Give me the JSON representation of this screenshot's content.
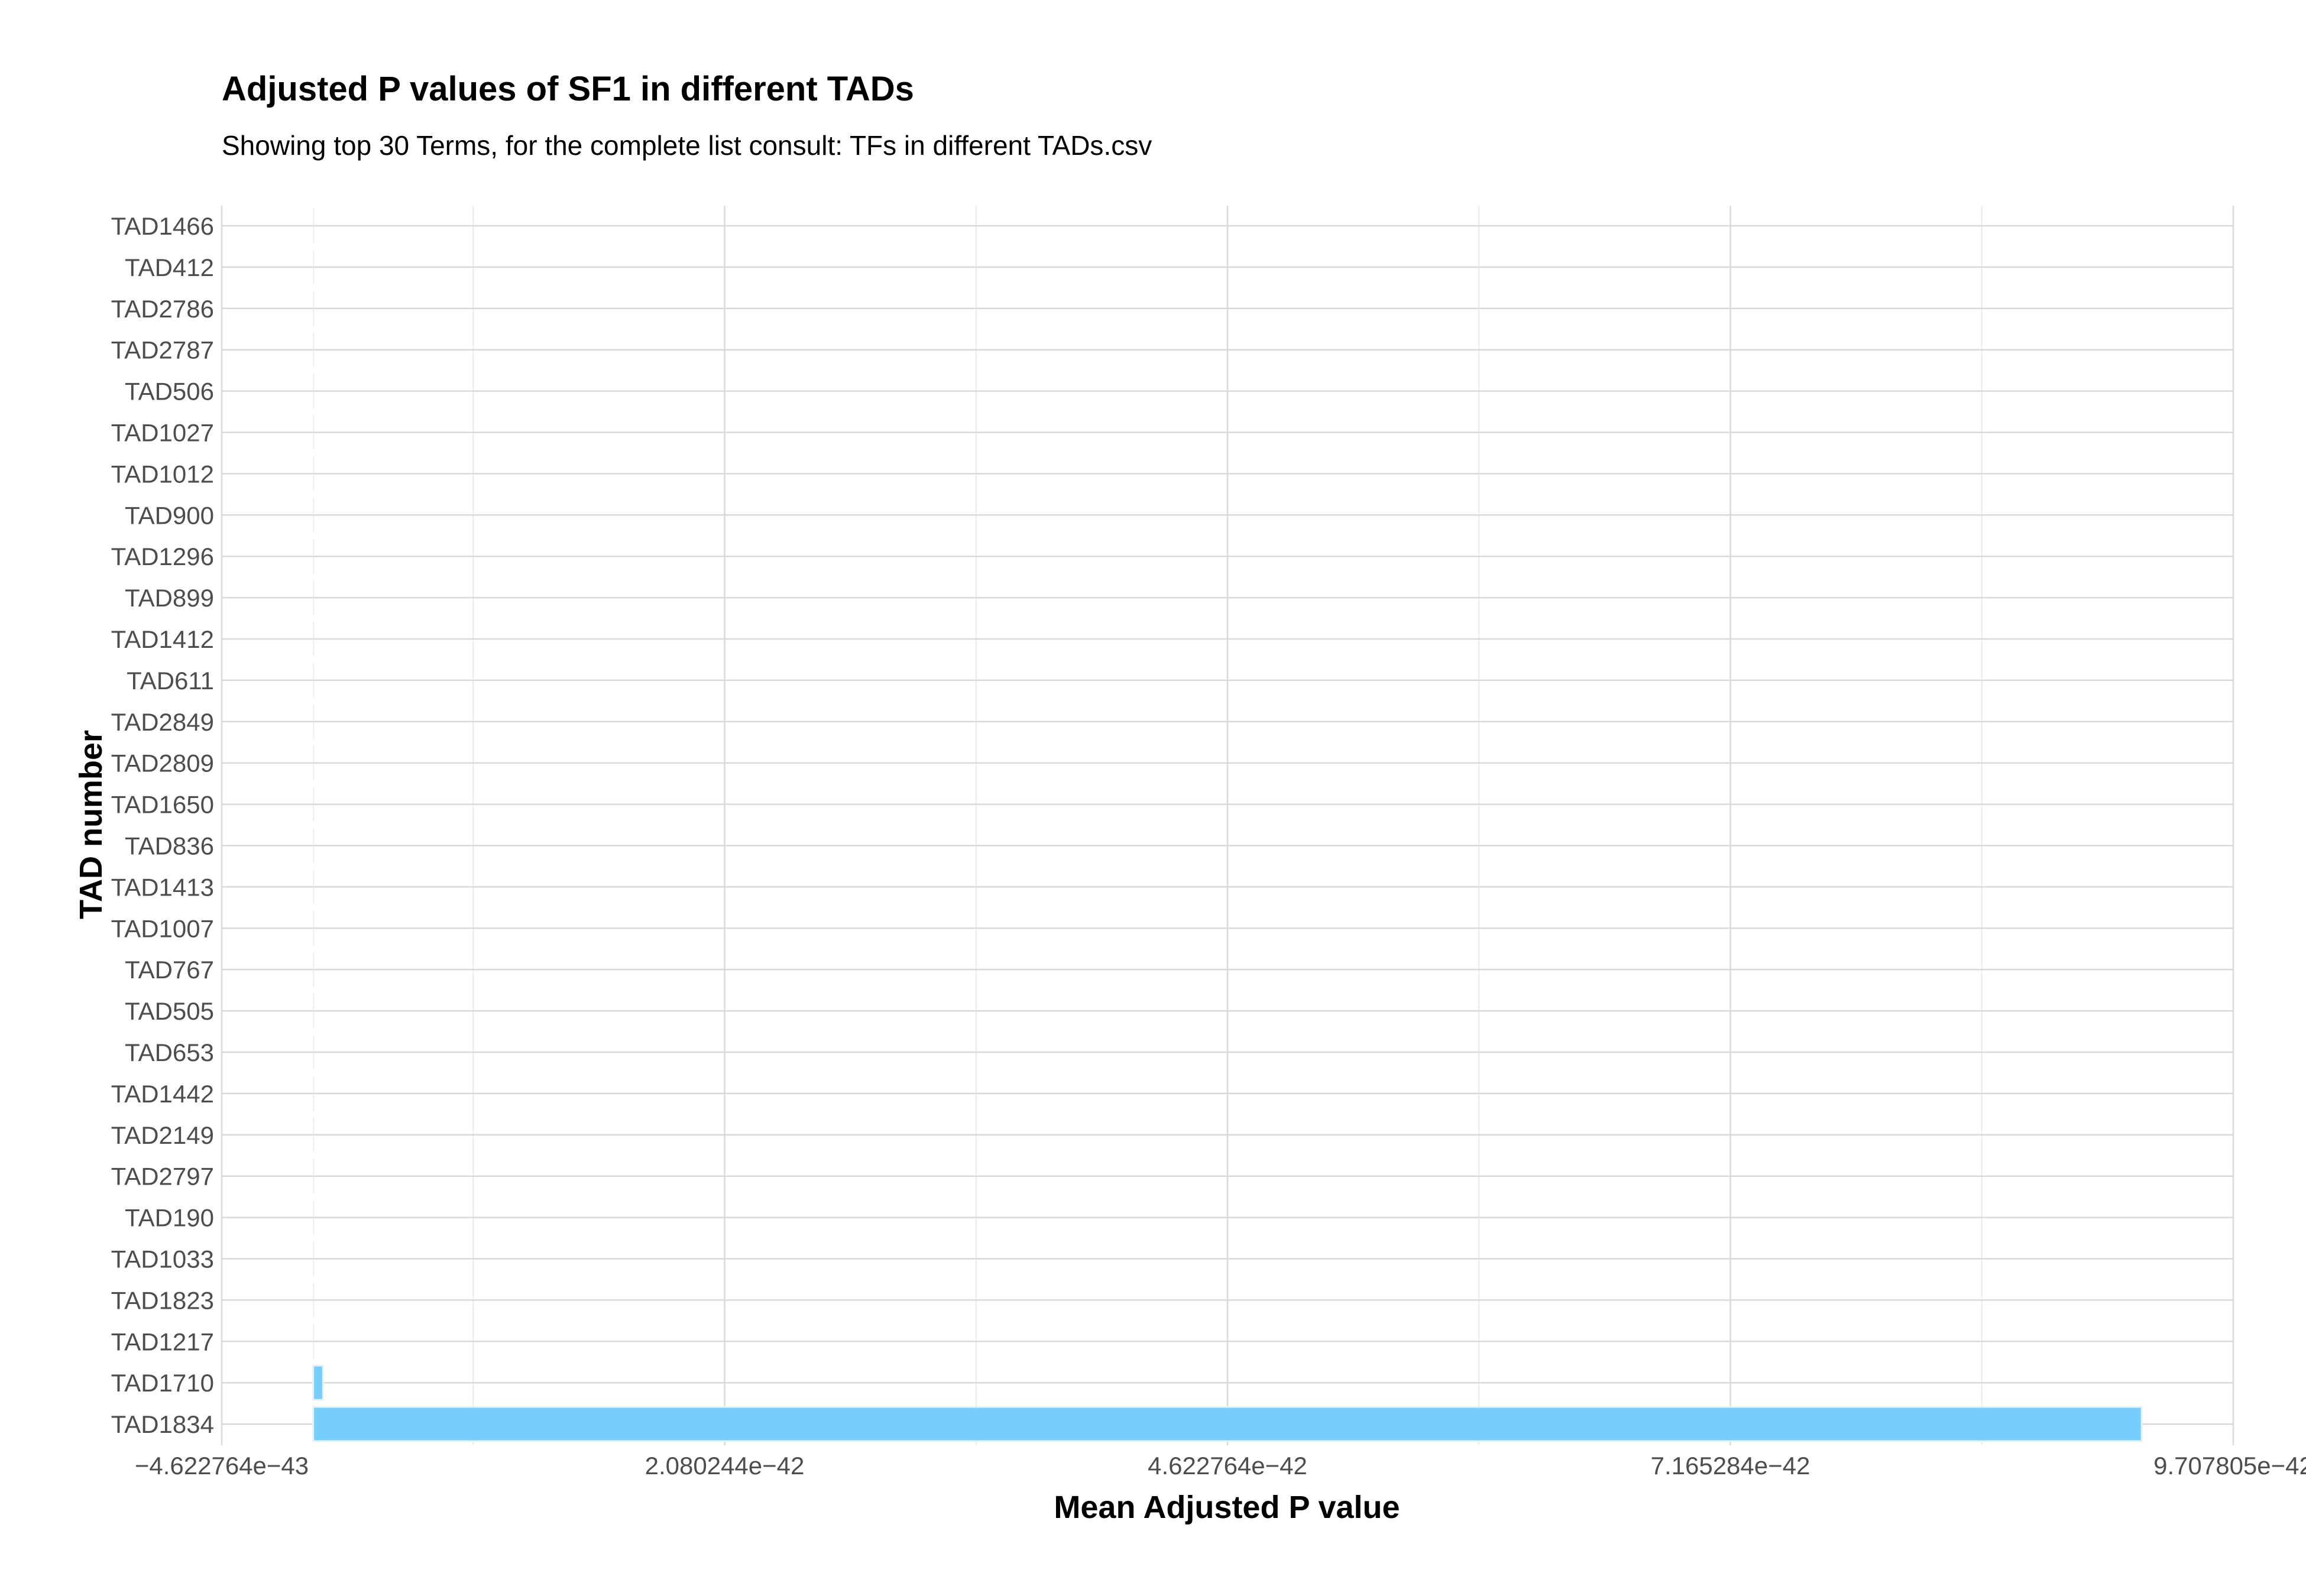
{
  "chart_data": {
    "type": "bar",
    "orientation": "horizontal",
    "title": "Adjusted P values of SF1 in different TADs",
    "subtitle": "Showing top 30 Terms, for the complete list consult: TFs in different TADs.csv",
    "xlabel": "Mean Adjusted P value",
    "ylabel": "TAD number",
    "xlim": [
      -4.622764e-43,
      9.707805e-42
    ],
    "x_ticks": [
      -4.622764e-43,
      2.080244e-42,
      4.622764e-42,
      7.165284e-42,
      9.707805e-42
    ],
    "x_tick_labels": [
      "−4.622764e−43",
      "2.080244e−42",
      "4.622764e−42",
      "7.165284e−42",
      "9.707805e−42"
    ],
    "categories": [
      "TAD1466",
      "TAD412",
      "TAD2786",
      "TAD2787",
      "TAD506",
      "TAD1027",
      "TAD1012",
      "TAD900",
      "TAD1296",
      "TAD899",
      "TAD1412",
      "TAD611",
      "TAD2849",
      "TAD2809",
      "TAD1650",
      "TAD836",
      "TAD1413",
      "TAD1007",
      "TAD767",
      "TAD505",
      "TAD653",
      "TAD1442",
      "TAD2149",
      "TAD2797",
      "TAD190",
      "TAD1033",
      "TAD1823",
      "TAD1217",
      "TAD1710",
      "TAD1834"
    ],
    "values": [
      1e-50,
      1e-50,
      1e-50,
      1e-50,
      1e-50,
      1e-50,
      1e-50,
      1e-50,
      1e-50,
      1e-50,
      1e-50,
      1e-50,
      1e-50,
      1e-50,
      1e-50,
      1e-50,
      1e-50,
      1e-50,
      1e-50,
      1e-50,
      1e-50,
      1e-50,
      1e-50,
      1e-50,
      1e-50,
      1e-49,
      1e-46,
      2e-45,
      5e-44,
      9.245e-42
    ],
    "bar_color": "#78cefb",
    "grid": true,
    "legend": "none"
  }
}
